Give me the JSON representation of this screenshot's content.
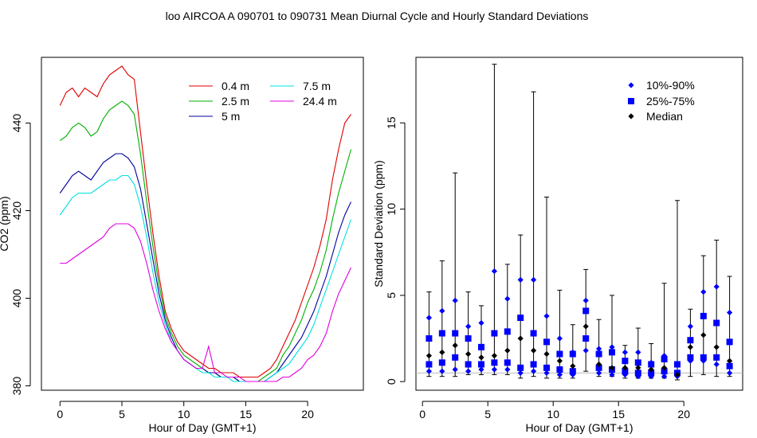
{
  "title": "loo   AIRCOA A   090701 to 090731   Mean Diurnal Cycle and Hourly Standard Deviations",
  "chart_data": [
    {
      "type": "line",
      "xlabel": "Hour of Day (GMT+1)",
      "ylabel": "CO2 (ppm)",
      "xlim": [
        -1.5,
        24.5
      ],
      "ylim": [
        379,
        455
      ],
      "xticks": [
        0,
        5,
        10,
        15,
        20
      ],
      "yticks": [
        380,
        400,
        420,
        440
      ],
      "legend": "top-right",
      "series": [
        {
          "name": "0.4 m",
          "color": "#e00000",
          "x": [
            0,
            0.5,
            1,
            1.5,
            2,
            2.5,
            3,
            3.5,
            4,
            4.5,
            5,
            5.5,
            6,
            6.5,
            7,
            7.5,
            8,
            8.5,
            9,
            9.5,
            10,
            10.5,
            11,
            11.5,
            12,
            12.5,
            13,
            13.5,
            14,
            14.5,
            15,
            15.5,
            16,
            16.5,
            17,
            17.5,
            18,
            18.5,
            19,
            19.5,
            20,
            20.5,
            21,
            21.5,
            22,
            22.5,
            23,
            23.5
          ],
          "y": [
            444,
            447,
            448,
            446,
            448,
            447,
            446,
            449,
            451,
            452,
            453,
            451,
            450,
            438,
            426,
            415,
            405,
            397,
            393,
            390,
            388,
            387,
            386,
            385,
            384,
            384,
            383,
            383,
            383,
            382,
            382,
            382,
            382,
            383,
            384,
            386,
            389,
            392,
            395,
            399,
            403,
            407,
            412,
            418,
            427,
            434,
            440,
            442
          ]
        },
        {
          "name": "2.5 m",
          "color": "#00b000",
          "x": [
            0,
            0.5,
            1,
            1.5,
            2,
            2.5,
            3,
            3.5,
            4,
            4.5,
            5,
            5.5,
            6,
            6.5,
            7,
            7.5,
            8,
            8.5,
            9,
            9.5,
            10,
            10.5,
            11,
            11.5,
            12,
            12.5,
            13,
            13.5,
            14,
            14.5,
            15,
            15.5,
            16,
            16.5,
            17,
            17.5,
            18,
            18.5,
            19,
            19.5,
            20,
            20.5,
            21,
            21.5,
            22,
            22.5,
            23,
            23.5
          ],
          "y": [
            436,
            437,
            439,
            440,
            439,
            437,
            438,
            441,
            443,
            444,
            445,
            444,
            442,
            433,
            422,
            412,
            403,
            396,
            392,
            389,
            387,
            386,
            385,
            384,
            383,
            383,
            382,
            382,
            382,
            381,
            381,
            381,
            381,
            382,
            383,
            384,
            387,
            389,
            392,
            395,
            399,
            402,
            406,
            411,
            418,
            424,
            429,
            434
          ]
        },
        {
          "name": "5 m",
          "color": "#00009c",
          "x": [
            0,
            0.5,
            1,
            1.5,
            2,
            2.5,
            3,
            3.5,
            4,
            4.5,
            5,
            5.5,
            6,
            6.5,
            7,
            7.5,
            8,
            8.5,
            9,
            9.5,
            10,
            10.5,
            11,
            11.5,
            12,
            12.5,
            13,
            13.5,
            14,
            14.5,
            15,
            15.5,
            16,
            16.5,
            17,
            17.5,
            18,
            18.5,
            19,
            19.5,
            20,
            20.5,
            21,
            21.5,
            22,
            22.5,
            23,
            23.5
          ],
          "y": [
            424,
            426,
            428,
            429,
            428,
            427,
            429,
            431,
            432,
            433,
            433,
            432,
            430,
            425,
            417,
            409,
            401,
            395,
            391,
            388,
            386,
            385,
            384,
            384,
            383,
            383,
            382,
            382,
            382,
            381,
            381,
            381,
            381,
            381,
            382,
            383,
            385,
            387,
            389,
            391,
            394,
            397,
            401,
            405,
            410,
            415,
            419,
            422
          ]
        },
        {
          "name": "7.5 m",
          "color": "#00e0e0",
          "x": [
            0,
            0.5,
            1,
            1.5,
            2,
            2.5,
            3,
            3.5,
            4,
            4.5,
            5,
            5.5,
            6,
            6.5,
            7,
            7.5,
            8,
            8.5,
            9,
            9.5,
            10,
            10.5,
            11,
            11.5,
            12,
            12.5,
            13,
            13.5,
            14,
            14.5,
            15,
            15.5,
            16,
            16.5,
            17,
            17.5,
            18,
            18.5,
            19,
            19.5,
            20,
            20.5,
            21,
            21.5,
            22,
            22.5,
            23,
            23.5
          ],
          "y": [
            419,
            421,
            423,
            424,
            424,
            424,
            425,
            426,
            427,
            427,
            428,
            428,
            426,
            421,
            414,
            406,
            399,
            394,
            390,
            388,
            386,
            385,
            384,
            383,
            383,
            382,
            382,
            382,
            381,
            381,
            381,
            381,
            381,
            381,
            382,
            383,
            384,
            385,
            387,
            389,
            391,
            394,
            398,
            402,
            406,
            410,
            414,
            418
          ]
        },
        {
          "name": "24.4 m",
          "color": "#e000e0",
          "x": [
            0,
            0.5,
            1,
            1.5,
            2,
            2.5,
            3,
            3.5,
            4,
            4.5,
            5,
            5.5,
            6,
            6.5,
            7,
            7.5,
            8,
            8.5,
            9,
            9.5,
            10,
            10.5,
            11,
            11.5,
            12,
            12.5,
            13,
            13.5,
            14,
            14.5,
            15,
            15.5,
            16,
            16.5,
            17,
            17.5,
            18,
            18.5,
            19,
            19.5,
            20,
            20.5,
            21,
            21.5,
            22,
            22.5,
            23,
            23.5
          ],
          "y": [
            408,
            408,
            409,
            410,
            411,
            412,
            413,
            414,
            416,
            417,
            417,
            417,
            416,
            413,
            408,
            402,
            397,
            393,
            390,
            388,
            386,
            385,
            384,
            384,
            389,
            383,
            383,
            382,
            382,
            382,
            381,
            381,
            381,
            381,
            381,
            381,
            382,
            382,
            383,
            384,
            386,
            387,
            389,
            392,
            397,
            401,
            404,
            407
          ]
        }
      ]
    },
    {
      "type": "scatter",
      "xlabel": "Hour of Day (GMT+1)",
      "ylabel": "Standard Deviation (ppm)",
      "xlim": [
        -0.5,
        24.5
      ],
      "ylim": [
        -0.5,
        18.8
      ],
      "xticks": [
        0,
        5,
        10,
        15,
        20
      ],
      "yticks": [
        0,
        5,
        10,
        15
      ],
      "legend": "top-right",
      "reference_line": 0.5,
      "x": [
        0.5,
        1.5,
        2.5,
        3.5,
        4.5,
        5.5,
        6.5,
        7.5,
        8.5,
        9.5,
        10.5,
        11.5,
        12.5,
        13.5,
        14.5,
        15.5,
        16.5,
        17.5,
        18.5,
        19.5,
        20.5,
        21.5,
        22.5,
        23.5
      ],
      "min": [
        0.3,
        0.3,
        0.3,
        0.4,
        0.4,
        0.4,
        0.4,
        0.2,
        0.3,
        0.2,
        0.2,
        0.2,
        0.6,
        0.3,
        0.3,
        0.2,
        0.2,
        0.2,
        0.2,
        0.1,
        0.3,
        0.4,
        0.3,
        0.3
      ],
      "max": [
        5.2,
        7.0,
        12.1,
        5.2,
        4.4,
        18.4,
        6.8,
        8.5,
        16.8,
        10.7,
        5.3,
        3.3,
        6.5,
        3.6,
        5.0,
        2.1,
        3.1,
        2.2,
        5.7,
        10.5,
        4.2,
        7.3,
        8.2,
        6.1
      ],
      "series": [
        {
          "name": "10%-90%",
          "color": "#0000ff",
          "marker": "diamond",
          "values_low": [
            0.6,
            0.6,
            0.7,
            0.6,
            0.7,
            0.7,
            0.7,
            0.5,
            0.6,
            0.5,
            0.4,
            0.4,
            1.8,
            0.5,
            0.4,
            0.4,
            0.3,
            0.3,
            0.3,
            0.3,
            1.2,
            1.2,
            1.0,
            0.5
          ],
          "values_high": [
            3.7,
            4.1,
            4.7,
            3.2,
            3.4,
            6.4,
            4.8,
            5.9,
            5.9,
            3.8,
            2.5,
            1.7,
            4.7,
            1.9,
            2.0,
            1.7,
            1.7,
            1.1,
            1.5,
            1.0,
            3.2,
            5.2,
            5.5,
            4.0
          ]
        },
        {
          "name": "25%-75%",
          "color": "#0000ff",
          "marker": "square",
          "values_low": [
            1.0,
            1.1,
            1.4,
            1.0,
            1.0,
            1.1,
            1.1,
            0.8,
            1.0,
            0.8,
            0.7,
            0.6,
            2.5,
            0.8,
            0.7,
            0.6,
            0.5,
            0.5,
            0.6,
            0.5,
            1.4,
            1.4,
            1.4,
            0.9
          ],
          "values_high": [
            2.5,
            2.8,
            2.8,
            2.5,
            2.0,
            2.8,
            2.9,
            3.7,
            2.8,
            2.3,
            1.6,
            1.6,
            4.1,
            1.6,
            1.7,
            1.2,
            1.1,
            1.0,
            1.3,
            1.0,
            2.4,
            3.8,
            3.4,
            2.3
          ]
        },
        {
          "name": "Median",
          "color": "#000000",
          "marker": "diamond",
          "values": [
            1.5,
            1.7,
            2.1,
            1.6,
            1.4,
            1.5,
            1.8,
            2.5,
            1.8,
            1.6,
            1.2,
            0.9,
            3.2,
            1.0,
            0.8,
            0.8,
            0.8,
            0.7,
            0.8,
            0.4,
            2.0,
            2.7,
            2.0,
            1.2
          ]
        }
      ]
    }
  ]
}
